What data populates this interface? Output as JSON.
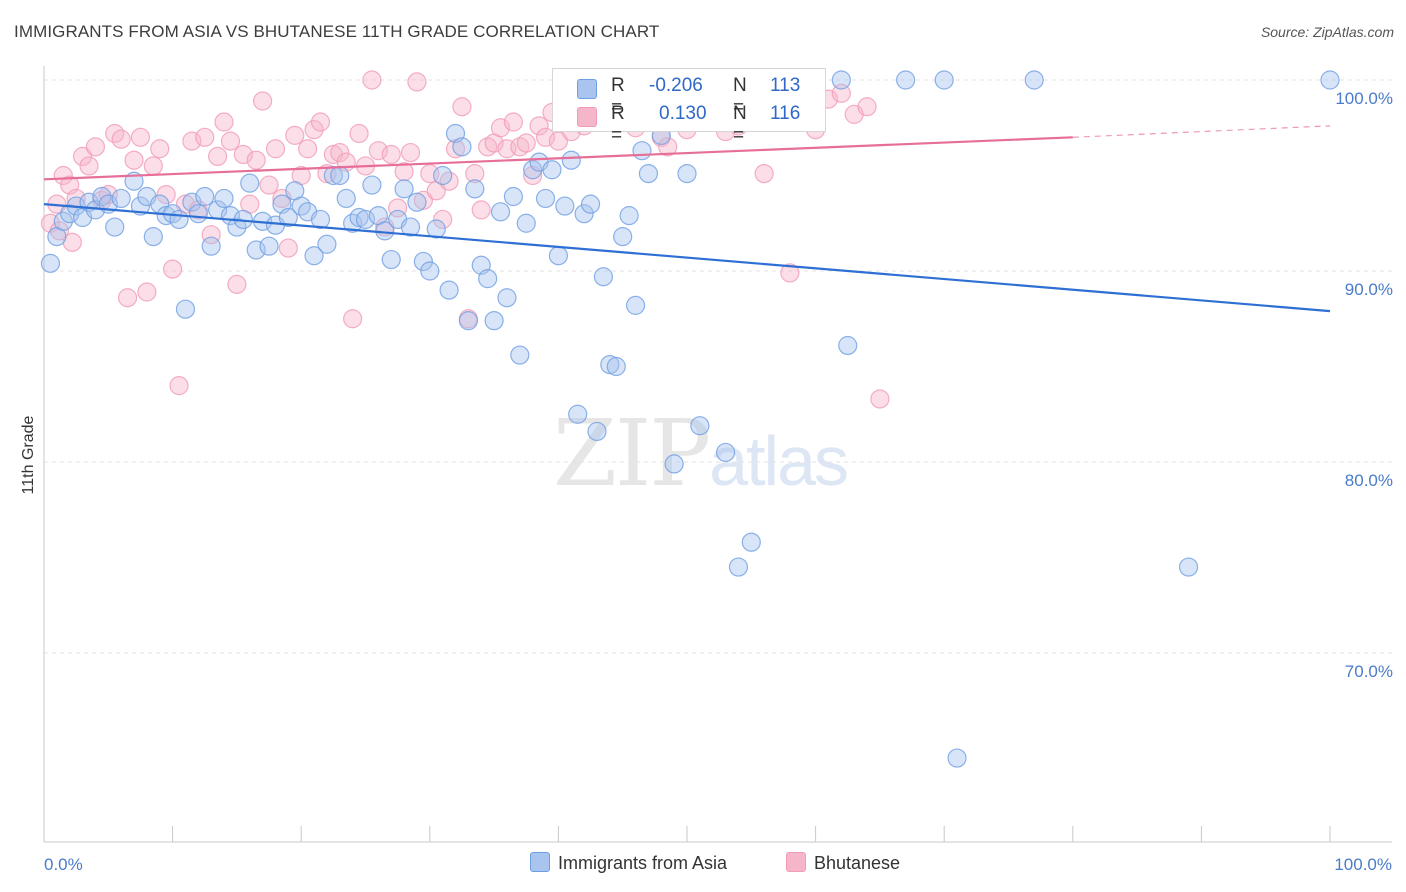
{
  "title": "IMMIGRANTS FROM ASIA VS BHUTANESE 11TH GRADE CORRELATION CHART",
  "source": "Source: ZipAtlas.com",
  "watermark": {
    "zip": "ZIP",
    "atlas": "atlas"
  },
  "legend": {
    "r_label": "R =",
    "n_label": "N =",
    "rows": [
      {
        "r": "-0.206",
        "n": "113",
        "color": "#a9c4ee"
      },
      {
        "r": "0.130",
        "n": "116",
        "color": "#f6b6c9"
      }
    ]
  },
  "chart_data": {
    "type": "scatter",
    "xlabel": "",
    "ylabel": "11th Grade",
    "xlim": [
      0,
      100
    ],
    "ylim": [
      60,
      100.5
    ],
    "x_tick_labels": [
      "0.0%",
      "100.0%"
    ],
    "y_tick_labels": [
      "100.0%",
      "90.0%",
      "80.0%",
      "70.0%"
    ],
    "y_ticks": [
      100,
      90,
      80,
      70
    ],
    "grid": true,
    "legend_position": "bottom-center",
    "series": [
      {
        "name": "Immigrants from Asia",
        "color": "#6f9fe3",
        "fill": "#a9c4ee",
        "trend": {
          "x0": 0,
          "y0": 93.5,
          "x1": 100,
          "y1": 87.9,
          "color": "#2e6fd4"
        },
        "points": [
          [
            0.5,
            90.4
          ],
          [
            1,
            91.8
          ],
          [
            1.5,
            92.6
          ],
          [
            2,
            93.0
          ],
          [
            2.5,
            93.4
          ],
          [
            3,
            92.8
          ],
          [
            3.5,
            93.6
          ],
          [
            4,
            93.2
          ],
          [
            4.5,
            93.9
          ],
          [
            5,
            93.5
          ],
          [
            5.5,
            92.3
          ],
          [
            6,
            93.8
          ],
          [
            7,
            94.7
          ],
          [
            7.5,
            93.4
          ],
          [
            8,
            93.9
          ],
          [
            8.5,
            91.8
          ],
          [
            9,
            93.5
          ],
          [
            9.5,
            92.9
          ],
          [
            10,
            93.0
          ],
          [
            10.5,
            92.7
          ],
          [
            11,
            88.0
          ],
          [
            11.5,
            93.6
          ],
          [
            12,
            93.0
          ],
          [
            12.5,
            93.9
          ],
          [
            13,
            91.3
          ],
          [
            13.5,
            93.2
          ],
          [
            14,
            93.8
          ],
          [
            14.5,
            92.9
          ],
          [
            15,
            92.3
          ],
          [
            15.5,
            92.7
          ],
          [
            16,
            94.6
          ],
          [
            16.5,
            91.1
          ],
          [
            17,
            92.6
          ],
          [
            17.5,
            91.3
          ],
          [
            18,
            92.4
          ],
          [
            18.5,
            93.5
          ],
          [
            19,
            92.8
          ],
          [
            19.5,
            94.2
          ],
          [
            20,
            93.4
          ],
          [
            20.5,
            93.1
          ],
          [
            21,
            90.8
          ],
          [
            21.5,
            92.7
          ],
          [
            22,
            91.4
          ],
          [
            22.5,
            95.0
          ],
          [
            23,
            95.0
          ],
          [
            23.5,
            93.8
          ],
          [
            24,
            92.5
          ],
          [
            24.5,
            92.8
          ],
          [
            25,
            92.7
          ],
          [
            25.5,
            94.5
          ],
          [
            26,
            92.9
          ],
          [
            26.5,
            92.1
          ],
          [
            27,
            90.6
          ],
          [
            27.5,
            92.7
          ],
          [
            28,
            94.3
          ],
          [
            28.5,
            92.3
          ],
          [
            29,
            93.6
          ],
          [
            29.5,
            90.5
          ],
          [
            30,
            90.0
          ],
          [
            30.5,
            92.2
          ],
          [
            31,
            95.0
          ],
          [
            31.5,
            89.0
          ],
          [
            32,
            97.2
          ],
          [
            32.5,
            96.5
          ],
          [
            33,
            87.4
          ],
          [
            33.5,
            94.3
          ],
          [
            34,
            90.3
          ],
          [
            34.5,
            89.6
          ],
          [
            35,
            87.4
          ],
          [
            35.5,
            93.1
          ],
          [
            36,
            88.6
          ],
          [
            36.5,
            93.9
          ],
          [
            37,
            85.6
          ],
          [
            37.5,
            92.5
          ],
          [
            38,
            95.3
          ],
          [
            38.5,
            95.7
          ],
          [
            39,
            93.8
          ],
          [
            39.5,
            95.3
          ],
          [
            40,
            90.8
          ],
          [
            40.5,
            93.4
          ],
          [
            41,
            95.8
          ],
          [
            41.5,
            82.5
          ],
          [
            42,
            93.0
          ],
          [
            42.5,
            93.5
          ],
          [
            43,
            81.6
          ],
          [
            43.5,
            89.7
          ],
          [
            44,
            85.1
          ],
          [
            44.5,
            85.0
          ],
          [
            45,
            91.8
          ],
          [
            45.5,
            92.9
          ],
          [
            46,
            88.2
          ],
          [
            46.5,
            96.3
          ],
          [
            47,
            95.1
          ],
          [
            48,
            97.1
          ],
          [
            49,
            79.9
          ],
          [
            50,
            95.1
          ],
          [
            51,
            81.9
          ],
          [
            51.5,
            97.9
          ],
          [
            53,
            80.5
          ],
          [
            54,
            74.5
          ],
          [
            55,
            75.8
          ],
          [
            56.5,
            100.0
          ],
          [
            62,
            100.0
          ],
          [
            62.5,
            86.1
          ],
          [
            67,
            100.0
          ],
          [
            70,
            100.0
          ],
          [
            71,
            64.5
          ],
          [
            77,
            100.0
          ],
          [
            89,
            74.5
          ],
          [
            100,
            100.0
          ]
        ]
      },
      {
        "name": "Bhutanese",
        "color": "#f19bb6",
        "fill": "#f6b6c9",
        "trend": {
          "x0": 0,
          "y0": 94.8,
          "x1": 80,
          "y1": 97.0,
          "color": "#e66e98",
          "dash_x1": 100,
          "dash_y1": 97.6
        },
        "points": [
          [
            0.5,
            92.5
          ],
          [
            1,
            93.5
          ],
          [
            1.5,
            95.0
          ],
          [
            2,
            94.5
          ],
          [
            2.5,
            93.8
          ],
          [
            3,
            96.0
          ],
          [
            3.5,
            95.5
          ],
          [
            4,
            96.5
          ],
          [
            4.5,
            93.7
          ],
          [
            5,
            94.0
          ],
          [
            5.5,
            97.2
          ],
          [
            6,
            96.9
          ],
          [
            6.5,
            88.6
          ],
          [
            7,
            95.8
          ],
          [
            7.5,
            97.0
          ],
          [
            8,
            88.9
          ],
          [
            8.5,
            95.5
          ],
          [
            9,
            96.4
          ],
          [
            9.5,
            94.0
          ],
          [
            10,
            90.1
          ],
          [
            10.5,
            84.0
          ],
          [
            11,
            93.5
          ],
          [
            11.5,
            96.8
          ],
          [
            12,
            93.2
          ],
          [
            12.5,
            97.0
          ],
          [
            13,
            91.9
          ],
          [
            13.5,
            96.0
          ],
          [
            14,
            97.8
          ],
          [
            14.5,
            96.8
          ],
          [
            15,
            89.3
          ],
          [
            15.5,
            96.1
          ],
          [
            16,
            93.5
          ],
          [
            16.5,
            95.8
          ],
          [
            17,
            98.9
          ],
          [
            17.5,
            94.5
          ],
          [
            18,
            96.4
          ],
          [
            18.5,
            93.8
          ],
          [
            19,
            91.2
          ],
          [
            19.5,
            97.1
          ],
          [
            20,
            95.0
          ],
          [
            20.5,
            96.4
          ],
          [
            21,
            97.4
          ],
          [
            21.5,
            97.8
          ],
          [
            22,
            95.1
          ],
          [
            22.5,
            96.1
          ],
          [
            23,
            96.2
          ],
          [
            23.5,
            95.7
          ],
          [
            24,
            87.5
          ],
          [
            24.5,
            97.2
          ],
          [
            25,
            95.5
          ],
          [
            25.5,
            100.0
          ],
          [
            26,
            96.3
          ],
          [
            26.5,
            92.3
          ],
          [
            27,
            96.1
          ],
          [
            27.5,
            93.3
          ],
          [
            28,
            95.2
          ],
          [
            28.5,
            96.2
          ],
          [
            29,
            99.9
          ],
          [
            29.5,
            93.7
          ],
          [
            30,
            95.1
          ],
          [
            30.5,
            94.2
          ],
          [
            31,
            92.7
          ],
          [
            31.5,
            94.7
          ],
          [
            32,
            96.4
          ],
          [
            32.5,
            98.6
          ],
          [
            33,
            87.5
          ],
          [
            33.5,
            95.1
          ],
          [
            34,
            93.2
          ],
          [
            34.5,
            96.5
          ],
          [
            35,
            96.7
          ],
          [
            35.5,
            97.5
          ],
          [
            36,
            96.4
          ],
          [
            36.5,
            97.8
          ],
          [
            37,
            96.5
          ],
          [
            37.5,
            96.7
          ],
          [
            38,
            95.0
          ],
          [
            38.5,
            97.6
          ],
          [
            39,
            97.0
          ],
          [
            39.5,
            98.3
          ],
          [
            40,
            96.8
          ],
          [
            40.5,
            98.2
          ],
          [
            41,
            97.3
          ],
          [
            41.5,
            99.0
          ],
          [
            42,
            97.6
          ],
          [
            42.5,
            98.8
          ],
          [
            43,
            99.2
          ],
          [
            43.5,
            99.5
          ],
          [
            44,
            100.0
          ],
          [
            44.5,
            97.8
          ],
          [
            45,
            98.5
          ],
          [
            45.5,
            98.1
          ],
          [
            46,
            97.5
          ],
          [
            46.5,
            99.0
          ],
          [
            47,
            98.7
          ],
          [
            47.5,
            98.0
          ],
          [
            48,
            97.0
          ],
          [
            48.5,
            96.5
          ],
          [
            49,
            97.9
          ],
          [
            49.5,
            98.4
          ],
          [
            50,
            97.4
          ],
          [
            50.5,
            98.6
          ],
          [
            51,
            98.9
          ],
          [
            52,
            99.1
          ],
          [
            53,
            97.3
          ],
          [
            54,
            97.6
          ],
          [
            55,
            97.8
          ],
          [
            56,
            95.1
          ],
          [
            57,
            98.3
          ],
          [
            58,
            89.9
          ],
          [
            59,
            98.8
          ],
          [
            60,
            97.4
          ],
          [
            61,
            99.0
          ],
          [
            62,
            99.3
          ],
          [
            63,
            98.2
          ],
          [
            64,
            98.6
          ],
          [
            65,
            83.3
          ],
          [
            1.2,
            92.1
          ],
          [
            2.2,
            91.5
          ]
        ]
      }
    ]
  }
}
